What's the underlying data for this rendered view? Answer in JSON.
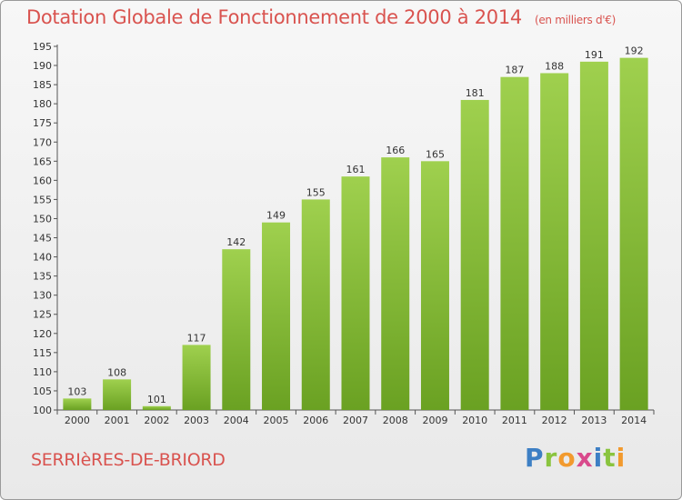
{
  "header": {
    "title": "Dotation Globale de Fonctionnement de 2000 à 2014",
    "unit": "(en milliers d'€)"
  },
  "footer": {
    "city": "SERRIèRES-DE-BRIORD",
    "logo": [
      "P",
      "r",
      "o",
      "x",
      "i",
      "t",
      "i"
    ]
  },
  "colors": {
    "bar_top": "#9fd04e",
    "bar_bottom": "#6aa122",
    "title": "#d9534f"
  },
  "chart_data": {
    "type": "bar",
    "categories": [
      "2000",
      "2001",
      "2002",
      "2003",
      "2004",
      "2005",
      "2006",
      "2007",
      "2008",
      "2009",
      "2010",
      "2011",
      "2012",
      "2013",
      "2014"
    ],
    "values": [
      103,
      108,
      101,
      117,
      142,
      149,
      155,
      161,
      166,
      165,
      181,
      187,
      188,
      191,
      192
    ],
    "ylim": [
      100,
      195
    ],
    "yticks": [
      100,
      105,
      110,
      115,
      120,
      125,
      130,
      135,
      140,
      145,
      150,
      155,
      160,
      165,
      170,
      175,
      180,
      185,
      190,
      195
    ],
    "grid": false,
    "legend": "none"
  }
}
